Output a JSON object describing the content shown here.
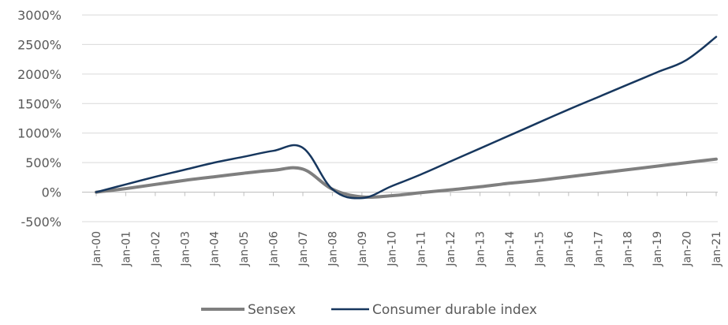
{
  "chart_data": {
    "type": "line",
    "title": "",
    "xlabel": "",
    "ylabel": "",
    "ylim": [
      -500,
      3000
    ],
    "yticks": [
      "3000%",
      "2500%",
      "2000%",
      "1500%",
      "1000%",
      "500%",
      "0%",
      "-500%"
    ],
    "ytick_values": [
      3000,
      2500,
      2000,
      1500,
      1000,
      500,
      0,
      -500
    ],
    "categories": [
      "Jan-00",
      "Jan-01",
      "Jan-02",
      "Jan-03",
      "Jan-04",
      "Jan-05",
      "Jan-06",
      "Jan-07",
      "Jan-08",
      "Jan-09",
      "Jan-10",
      "Jan-11",
      "Jan-12",
      "Jan-13",
      "Jan-14",
      "Jan-15",
      "Jan-16",
      "Jan-17",
      "Jan-18",
      "Jan-19",
      "Jan-20",
      "Jan-21"
    ],
    "series": [
      {
        "name": "Sensex",
        "color": "#7f7f7f",
        "values": [
          0,
          60,
          130,
          200,
          260,
          320,
          370,
          390,
          50,
          -80,
          -60,
          -10,
          40,
          90,
          150,
          200,
          260,
          320,
          380,
          440,
          500,
          560
        ]
      },
      {
        "name": "Consumer durable index",
        "color": "#17375e",
        "values": [
          0,
          130,
          260,
          380,
          500,
          600,
          700,
          750,
          50,
          -100,
          100,
          300,
          520,
          740,
          960,
          1180,
          1400,
          1610,
          1820,
          2030,
          2240,
          2630
        ]
      }
    ],
    "legend_position": "bottom",
    "grid": true
  }
}
